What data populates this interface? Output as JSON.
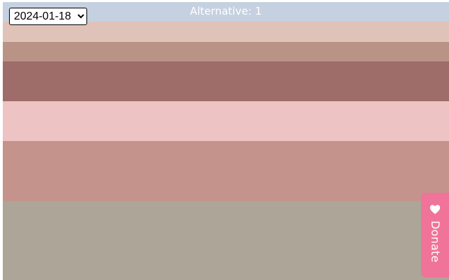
{
  "header": {
    "title": "Alternative: 1"
  },
  "date_select": {
    "value": "2024-01-18",
    "options": [
      "2024-01-18"
    ]
  },
  "palette": {
    "header_color": "#c5d1e0",
    "stripes": [
      {
        "color": "#e0c3b8"
      },
      {
        "color": "#ba9387"
      },
      {
        "color": "#9e6c69"
      },
      {
        "color": "#eec3c4"
      },
      {
        "color": "#c4938c"
      },
      {
        "color": "#aca598"
      }
    ]
  },
  "donate": {
    "label": "Donate",
    "icon": "heart-icon",
    "color": "#f07399"
  }
}
